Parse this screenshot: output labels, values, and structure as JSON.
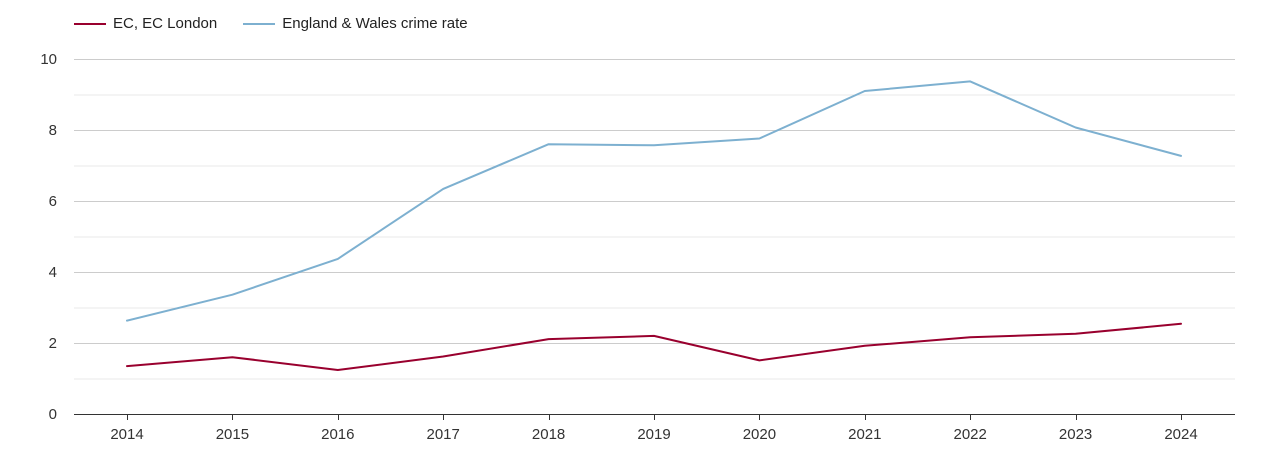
{
  "legend": {
    "items": [
      {
        "label": "EC, EC London",
        "color": "#99002e"
      },
      {
        "label": "England & Wales crime rate",
        "color": "#7db0d0"
      }
    ]
  },
  "chart_data": {
    "type": "line",
    "title": "",
    "xlabel": "",
    "ylabel": "",
    "x": [
      "2014",
      "2015",
      "2016",
      "2017",
      "2018",
      "2019",
      "2020",
      "2021",
      "2022",
      "2023",
      "2024"
    ],
    "ylim": [
      0,
      10
    ],
    "yticks": [
      0,
      2,
      4,
      6,
      8,
      10
    ],
    "grid": true,
    "legend_position": "top-left",
    "series": [
      {
        "name": "EC, EC London",
        "color": "#99002e",
        "values": [
          1.35,
          1.6,
          1.24,
          1.62,
          2.11,
          2.2,
          1.51,
          1.92,
          2.16,
          2.26,
          2.54
        ]
      },
      {
        "name": "England & Wales crime rate",
        "color": "#7db0d0",
        "values": [
          2.63,
          3.36,
          4.37,
          6.34,
          7.6,
          7.57,
          7.76,
          9.1,
          9.37,
          8.07,
          7.27
        ]
      }
    ]
  }
}
